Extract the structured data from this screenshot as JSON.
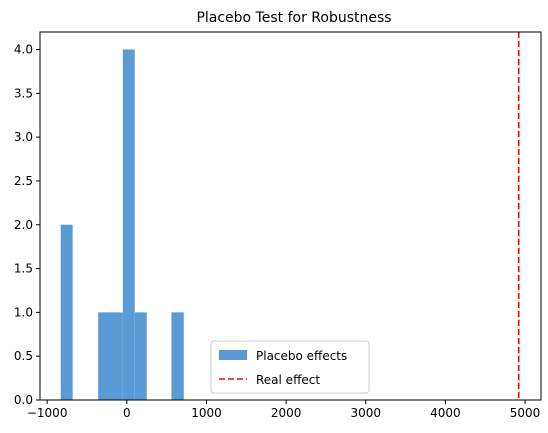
{
  "chart_data": {
    "type": "bar",
    "title": "Placebo Test for Robustness",
    "xlabel": "",
    "ylabel": "",
    "xlim": [
      -1090,
      5200
    ],
    "ylim": [
      0,
      4.2
    ],
    "x_ticks": [
      -1000,
      0,
      1000,
      2000,
      3000,
      4000,
      5000
    ],
    "x_tick_labels": [
      "−1000",
      "0",
      "1000",
      "2000",
      "3000",
      "4000",
      "5000"
    ],
    "y_ticks": [
      0.0,
      0.5,
      1.0,
      1.5,
      2.0,
      2.5,
      3.0,
      3.5,
      4.0
    ],
    "y_tick_labels": [
      "0.0",
      "0.5",
      "1.0",
      "1.5",
      "2.0",
      "2.5",
      "3.0",
      "3.5",
      "4.0"
    ],
    "grid": false,
    "legend_position": "lower-center",
    "series": [
      {
        "name": "Placebo effects",
        "kind": "histogram",
        "color": "#5b9bd5",
        "bins": [
          {
            "x0": -830,
            "x1": -680,
            "count": 2
          },
          {
            "x0": -360,
            "x1": -50,
            "count": 1
          },
          {
            "x0": -50,
            "x1": 100,
            "count": 4
          },
          {
            "x0": 100,
            "x1": 250,
            "count": 1
          },
          {
            "x0": 560,
            "x1": 715,
            "count": 1
          }
        ]
      },
      {
        "name": "Real effect",
        "kind": "vline",
        "color": "#ff0000",
        "x": 4920
      }
    ]
  }
}
